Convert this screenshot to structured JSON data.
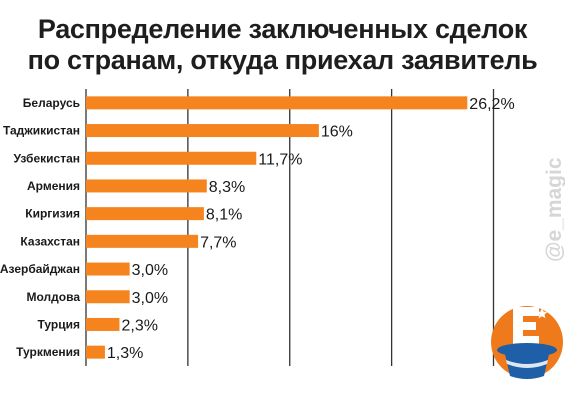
{
  "title": "Распределение заключенных сделок\nпо странам, откуда приехал заявитель",
  "watermark": "@e_magic",
  "colors": {
    "bar": "#f5841f",
    "grid": "#333333",
    "logo": "#ee7a1b",
    "hat": "#1f5fa8"
  },
  "chart_data": {
    "type": "bar",
    "orientation": "horizontal",
    "title": "Распределение заключенных сделок по странам, откуда приехал заявитель",
    "categories": [
      "Беларусь",
      "Таджикистан",
      "Узбекистан",
      "Армения",
      "Киргизия",
      "Казахстан",
      "Азербайджан",
      "Молдова",
      "Турция",
      "Туркмения"
    ],
    "values": [
      26.2,
      16,
      11.7,
      8.3,
      8.1,
      7.7,
      3.0,
      3.0,
      2.3,
      1.3
    ],
    "value_labels": [
      "26,2%",
      "16%",
      "11,7%",
      "8,3%",
      "8,1%",
      "7,7%",
      "3,0%",
      "3,0%",
      "2,3%",
      "1,3%"
    ],
    "xlim": [
      0,
      28
    ],
    "grid": true
  }
}
